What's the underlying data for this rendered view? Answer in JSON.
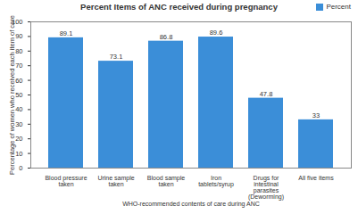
{
  "chart_data": {
    "type": "bar",
    "title": "Percent Items of ANC received during pregnancy",
    "x_label": "WHO-recommended contents of care during ANC",
    "y_label": "Percentage of women who received each item of care",
    "categories": [
      "Blood pressure taken",
      "Urine sample taken",
      "Blood sample taken",
      "Iron tablets/syrup",
      "Drugs for intestinal parasites (Deworming)",
      "All five items"
    ],
    "series": [
      {
        "name": "Percent",
        "color": "#3b8ed8",
        "values": [
          89.1,
          73.1,
          86.8,
          89.6,
          47.8,
          33
        ]
      }
    ],
    "ylim": [
      0,
      100
    ],
    "yticks": [
      0,
      10,
      20,
      30,
      40,
      50,
      60,
      70,
      80,
      90,
      100
    ],
    "grid": false,
    "legend": "top-right",
    "data_labels": true
  }
}
